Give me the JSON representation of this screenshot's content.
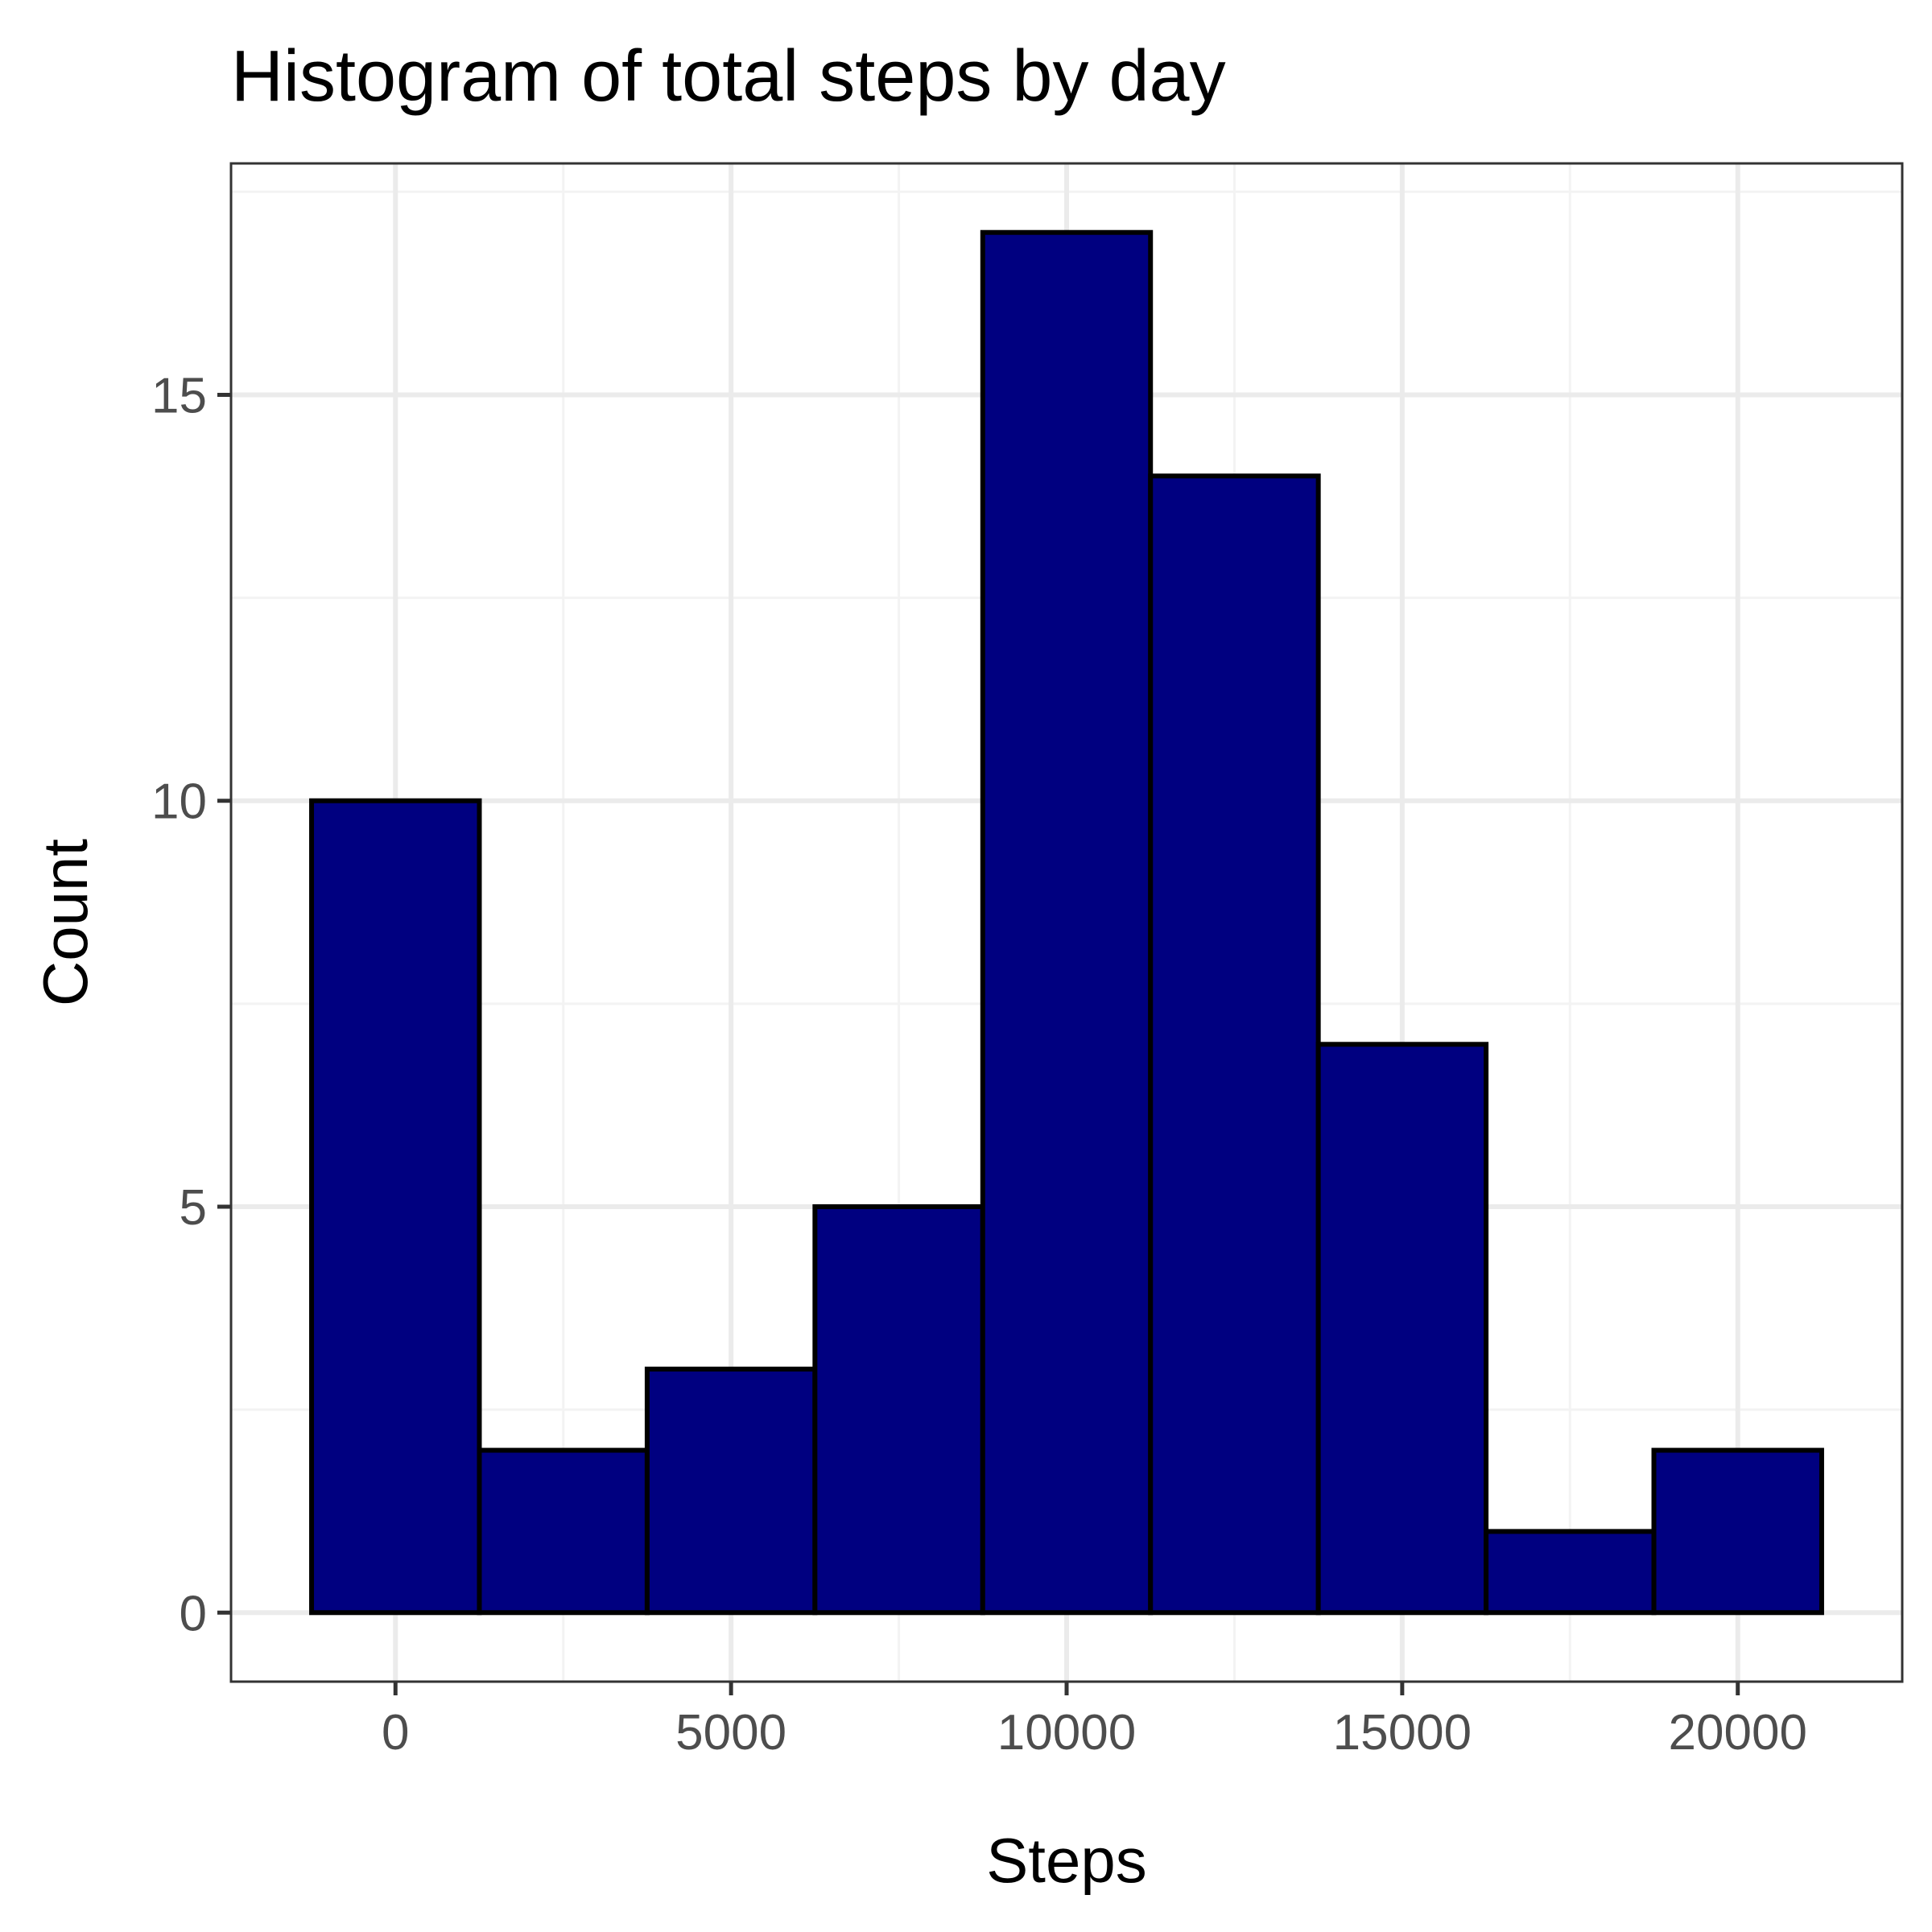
{
  "chart_data": {
    "type": "bar",
    "title": "Histogram of total steps by day",
    "xlabel": "Steps",
    "ylabel": "Count",
    "bin_width": 2500,
    "bins": [
      {
        "start": -1250,
        "end": 1250,
        "count": 10
      },
      {
        "start": 1250,
        "end": 3750,
        "count": 2
      },
      {
        "start": 3750,
        "end": 6250,
        "count": 3
      },
      {
        "start": 6250,
        "end": 8750,
        "count": 5
      },
      {
        "start": 8750,
        "end": 11250,
        "count": 17
      },
      {
        "start": 11250,
        "end": 13750,
        "count": 14
      },
      {
        "start": 13750,
        "end": 16250,
        "count": 7
      },
      {
        "start": 16250,
        "end": 18750,
        "count": 1
      },
      {
        "start": 18750,
        "end": 21250,
        "count": 2
      }
    ],
    "xlim": [
      -2450,
      22450
    ],
    "ylim": [
      -0.85,
      17.85
    ],
    "x_ticks": [
      0,
      5000,
      10000,
      15000,
      20000
    ],
    "x_tick_labels": [
      "0",
      "5000",
      "10000",
      "15000",
      "20000"
    ],
    "y_ticks": [
      0,
      5,
      10,
      15
    ],
    "y_tick_labels": [
      "0",
      "5",
      "10",
      "15"
    ],
    "x_minor_ticks": [
      2500,
      7500,
      12500,
      17500
    ],
    "y_minor_ticks": [
      2.5,
      7.5,
      12.5,
      17.5
    ],
    "grid": true,
    "legend": "none",
    "colors": {
      "bar_fill": "#000080",
      "bar_stroke": "#000000",
      "grid_major": "#ebebeb",
      "grid_minor": "#f3f3f3",
      "panel_border": "#333333",
      "tick_mark": "#333333",
      "background": "#ffffff"
    }
  }
}
